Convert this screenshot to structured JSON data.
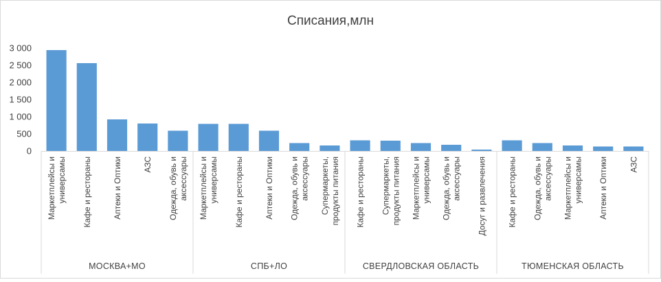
{
  "chart_data": {
    "type": "bar",
    "title": "Списания,млн",
    "xlabel": "",
    "ylabel": "",
    "ylim": [
      0,
      3000
    ],
    "yticks": [
      "0",
      "500",
      "1 000",
      "1 500",
      "2 000",
      "2 500",
      "3 000"
    ],
    "ytick_values": [
      0,
      500,
      1000,
      1500,
      2000,
      2500,
      3000
    ],
    "grid": false,
    "legend": "none",
    "bar_color": "#5B9BD5",
    "axis_color": "#D9D9D9",
    "text_color": "#404040",
    "groups": [
      {
        "name": "МОСКВА+МО",
        "categories": [
          [
            "Маркетплейсы и",
            "универсамы"
          ],
          [
            "Кафе и рестораны"
          ],
          [
            "Аптеки и Оптики"
          ],
          [
            "АЗС"
          ],
          [
            "Одежда, обувь и",
            "аксессуары"
          ]
        ],
        "values": [
          2940,
          2560,
          920,
          800,
          590
        ]
      },
      {
        "name": "СПБ+ЛО",
        "categories": [
          [
            "Маркетплейсы и",
            "универсамы"
          ],
          [
            "Кафе и рестораны"
          ],
          [
            "Аптеки и Оптики"
          ],
          [
            "Одежда, обувь и",
            "аксессуары"
          ],
          [
            "Супермаркеты,",
            "продукты питания"
          ]
        ],
        "values": [
          790,
          790,
          590,
          230,
          160
        ]
      },
      {
        "name": "СВЕРДЛОВСКАЯ ОБЛАСТЬ",
        "categories": [
          [
            "Кафе и рестораны"
          ],
          [
            "Супермаркеты,",
            "продукты питания"
          ],
          [
            "Маркетплейсы и",
            "универсамы"
          ],
          [
            "Одежда, обувь и",
            "аксессуары"
          ],
          [
            "Досуг и развлечения"
          ]
        ],
        "values": [
          310,
          300,
          230,
          180,
          40
        ]
      },
      {
        "name": "ТЮМЕНСКАЯ ОБЛАСТЬ",
        "categories": [
          [
            "Кафе и рестораны"
          ],
          [
            "Одежда, обувь и",
            "аксессуары"
          ],
          [
            "Маркетплейсы и",
            "универсамы"
          ],
          [
            "Аптеки и Оптики"
          ],
          [
            "АЗС"
          ]
        ],
        "values": [
          310,
          230,
          160,
          130,
          130
        ]
      }
    ]
  }
}
